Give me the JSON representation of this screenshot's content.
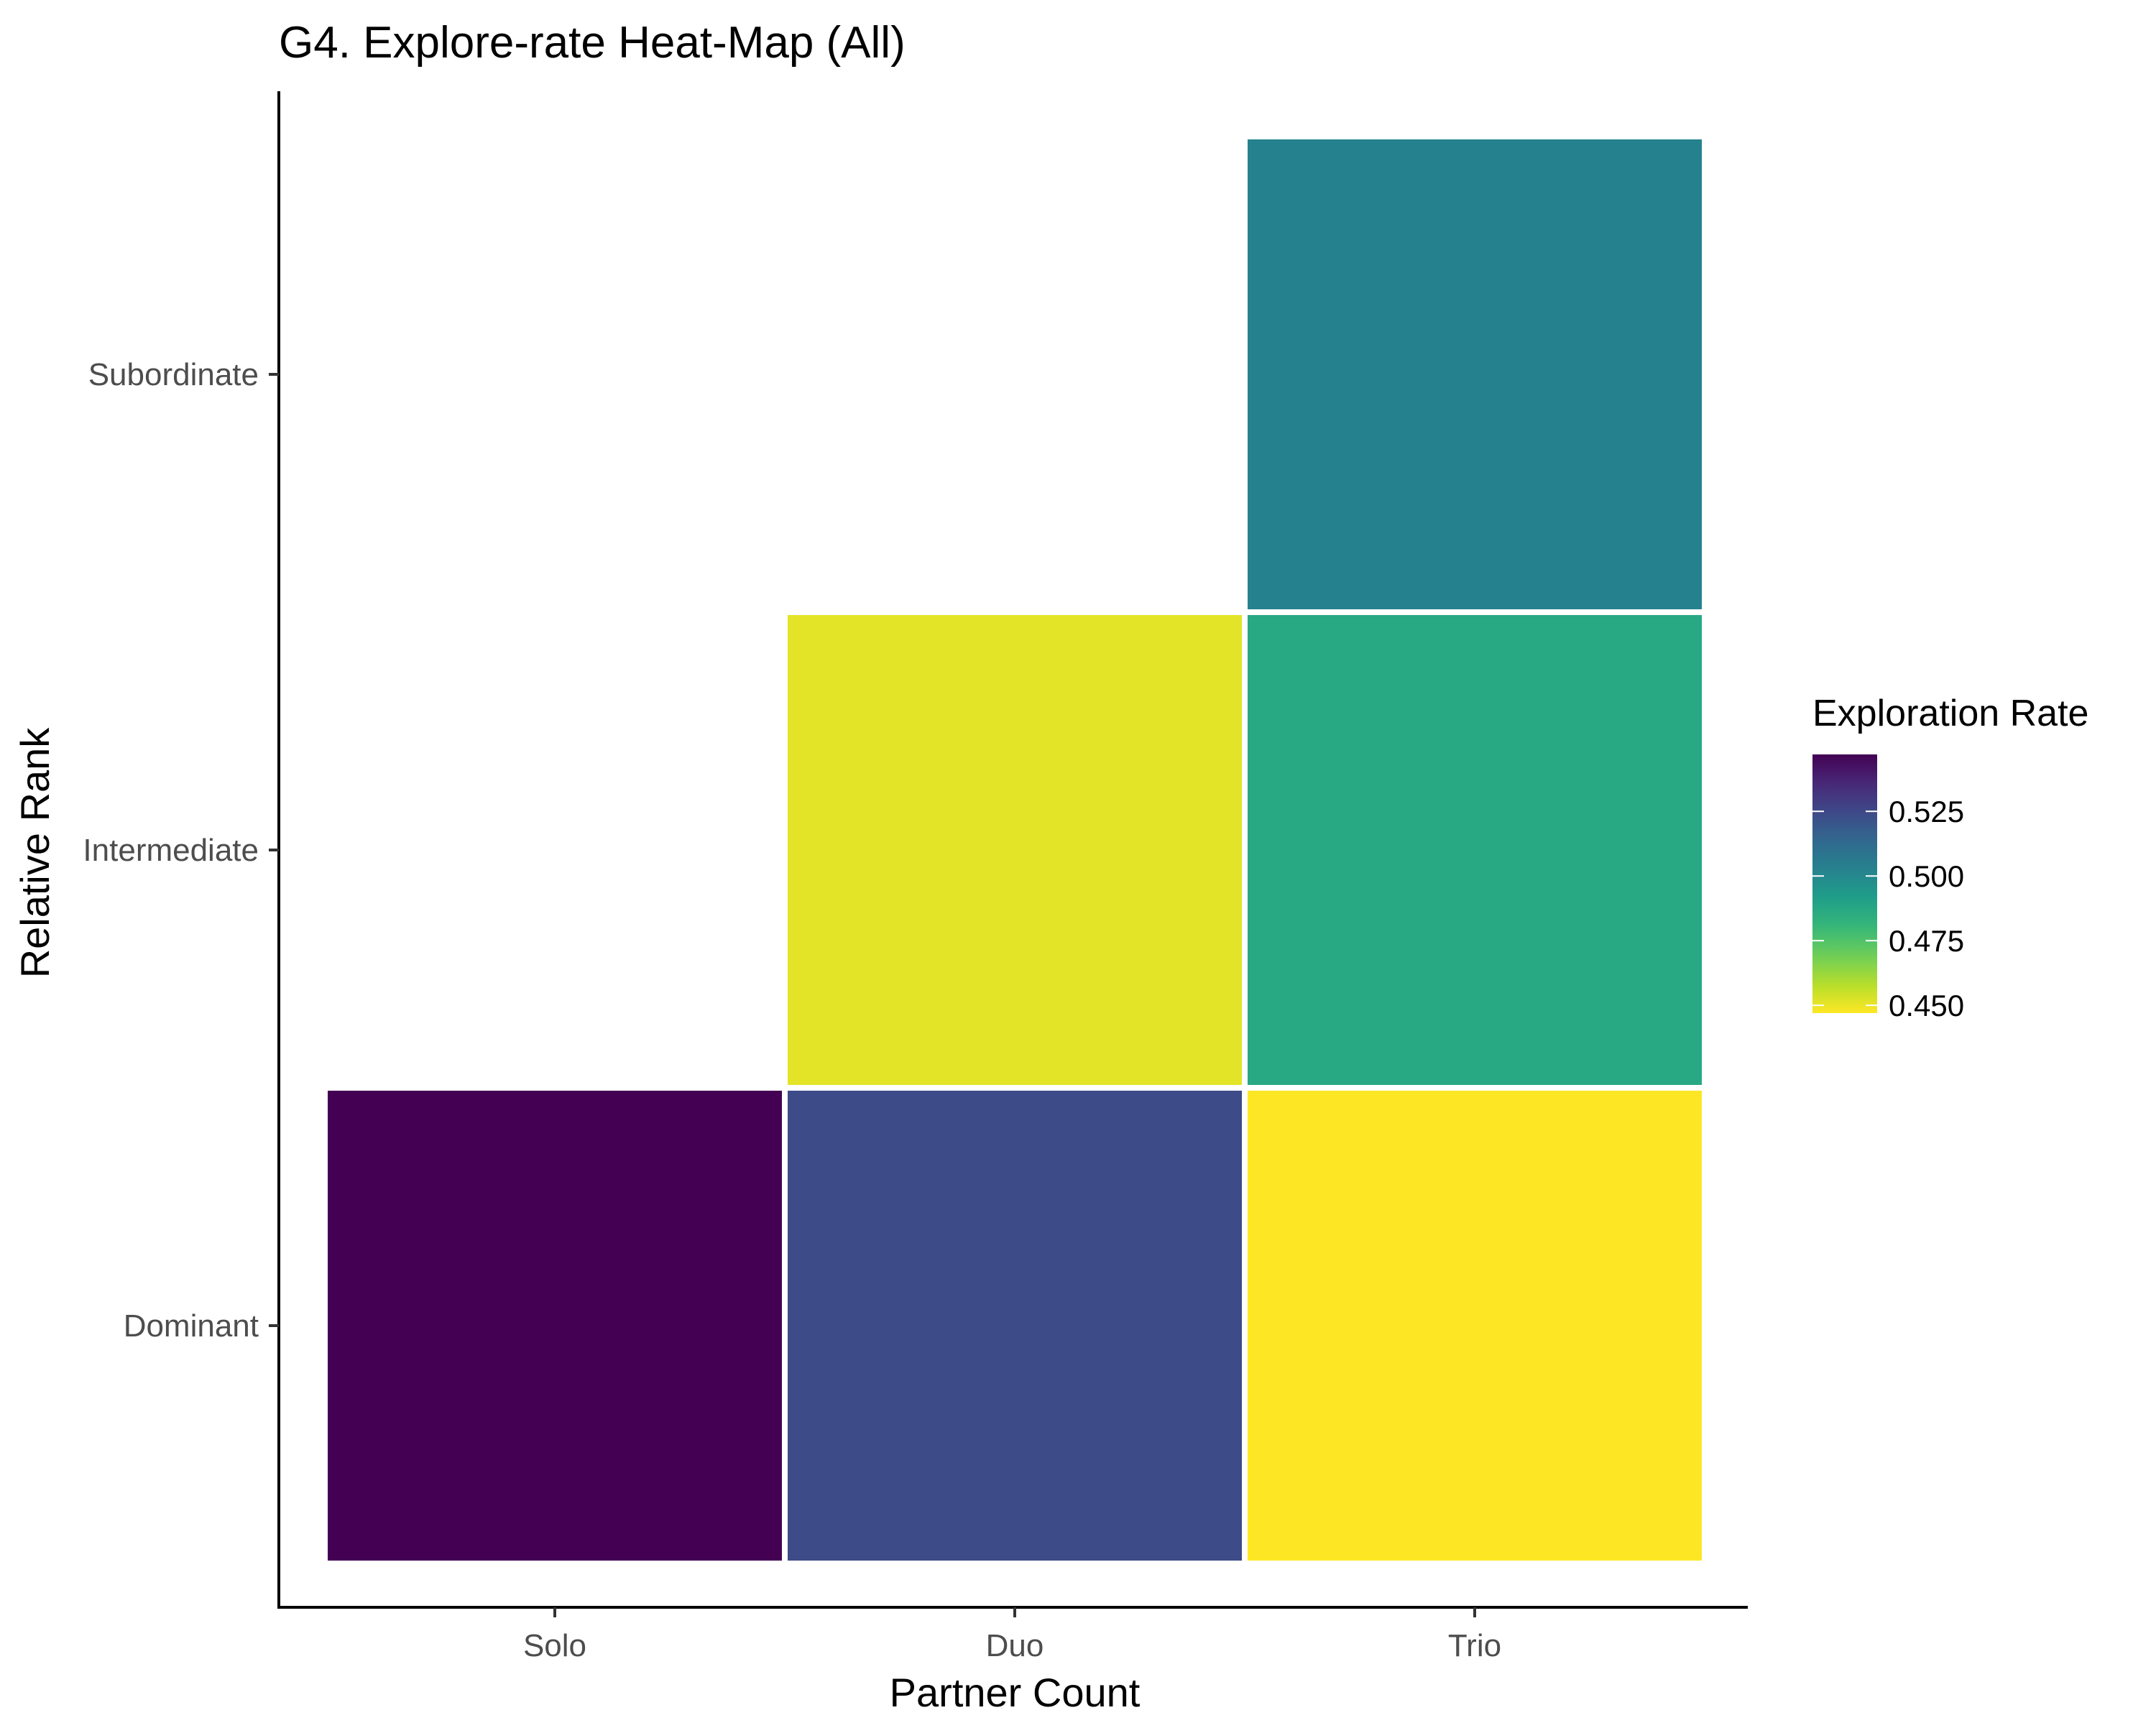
{
  "chart_data": {
    "type": "heatmap",
    "title": "G4. Explore-rate Heat-Map (All)",
    "xlabel": "Partner Count",
    "ylabel": "Relative Rank",
    "x_categories": [
      "Solo",
      "Duo",
      "Trio"
    ],
    "y_categories": [
      "Dominant",
      "Intermediate",
      "Subordinate"
    ],
    "cells": [
      {
        "x": "Solo",
        "y": "Dominant",
        "value": 0.547
      },
      {
        "x": "Duo",
        "y": "Dominant",
        "value": 0.524
      },
      {
        "x": "Trio",
        "y": "Dominant",
        "value": 0.447
      },
      {
        "x": "Duo",
        "y": "Intermediate",
        "value": 0.451
      },
      {
        "x": "Trio",
        "y": "Intermediate",
        "value": 0.487
      },
      {
        "x": "Trio",
        "y": "Subordinate",
        "value": 0.503
      }
    ],
    "colorbar": {
      "title": "Exploration Rate",
      "min": 0.447,
      "max": 0.547,
      "ticks": [
        0.525,
        0.5,
        0.475,
        0.45
      ],
      "tick_labels": [
        "0.525",
        "0.500",
        "0.475",
        "0.450"
      ],
      "palette": "viridis",
      "low_color": "#fde725",
      "high_color": "#440154"
    },
    "legend_position": "right",
    "grid": false
  }
}
